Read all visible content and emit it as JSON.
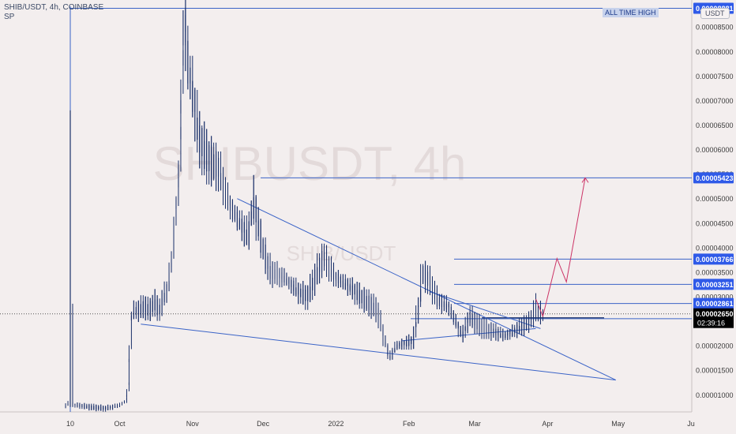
{
  "header": {
    "symbol_line": "SHIB/USDT, 4h, COINBASE",
    "indicator": "SP"
  },
  "badges": {
    "ath": "ALL TIME HIGH",
    "currency": "USDT"
  },
  "watermark": {
    "main": "SHIBUSDT, 4h",
    "sub": "SHIB/USDT"
  },
  "chart_data": {
    "type": "line",
    "title": "SHIB/USDT, 4h, COINBASE",
    "x_tick_labels": [
      "10",
      "Oct",
      "Nov",
      "Dec",
      "2022",
      "Feb",
      "Mar",
      "Apr",
      "May",
      "Ju"
    ],
    "y_tick_labels": [
      "0.00008500",
      "0.00008000",
      "0.00007500",
      "0.00007000",
      "0.00006500",
      "0.00006000",
      "0.00005500",
      "0.00005000",
      "0.00004500",
      "0.00004000",
      "0.00003500",
      "0.00003000",
      "0.00002500",
      "0.00002000",
      "0.00001500",
      "0.00001000"
    ],
    "ylim": [
      6.5e-06,
      9.05e-05
    ],
    "price_series": {
      "name": "SHIB/USDT",
      "points": [
        [
          "2021-09-08",
          7.5e-06
        ],
        [
          "2021-09-10",
          8.5e-06
        ],
        [
          "2021-09-10",
          6.8e-05
        ],
        [
          "2021-09-11",
          8e-06
        ],
        [
          "2021-09-18",
          7.5e-06
        ],
        [
          "2021-09-25",
          7.2e-06
        ],
        [
          "2021-10-01",
          7.8e-06
        ],
        [
          "2021-10-04",
          8.8e-06
        ],
        [
          "2021-10-05",
          1.22e-05
        ],
        [
          "2021-10-06",
          2.5e-05
        ],
        [
          "2021-10-07",
          2.7e-05
        ],
        [
          "2021-10-09",
          2.72e-05
        ],
        [
          "2021-10-12",
          2.8e-05
        ],
        [
          "2021-10-14",
          2.7e-05
        ],
        [
          "2021-10-16",
          2.9e-05
        ],
        [
          "2021-10-18",
          2.7e-05
        ],
        [
          "2021-10-20",
          3e-05
        ],
        [
          "2021-10-22",
          3.2e-05
        ],
        [
          "2021-10-24",
          4e-05
        ],
        [
          "2021-10-25",
          4.8e-05
        ],
        [
          "2021-10-26",
          5.2e-05
        ],
        [
          "2021-10-27",
          6.2e-05
        ],
        [
          "2021-10-28",
          8e-05
        ],
        [
          "2021-10-29",
          8.88e-05
        ],
        [
          "2021-10-30",
          7.8e-05
        ],
        [
          "2021-11-01",
          7.2e-05
        ],
        [
          "2021-11-04",
          6.2e-05
        ],
        [
          "2021-11-08",
          5.8e-05
        ],
        [
          "2021-11-12",
          5.6e-05
        ],
        [
          "2021-11-16",
          5e-05
        ],
        [
          "2021-11-20",
          4.6e-05
        ],
        [
          "2021-11-25",
          4.2e-05
        ],
        [
          "2021-11-27",
          5e-05
        ],
        [
          "2021-12-01",
          4e-05
        ],
        [
          "2021-12-04",
          3.5e-05
        ],
        [
          "2021-12-10",
          3.4e-05
        ],
        [
          "2021-12-16",
          3.1e-05
        ],
        [
          "2021-12-20",
          3e-05
        ],
        [
          "2021-12-27",
          3.8e-05
        ],
        [
          "2022-01-01",
          3.4e-05
        ],
        [
          "2022-01-07",
          3.2e-05
        ],
        [
          "2022-01-14",
          2.9e-05
        ],
        [
          "2022-01-19",
          2.7e-05
        ],
        [
          "2022-01-22",
          2.1e-05
        ],
        [
          "2022-01-24",
          1.75e-05
        ],
        [
          "2022-01-27",
          2e-05
        ],
        [
          "2022-02-03",
          2.1e-05
        ],
        [
          "2022-02-06",
          3e-05
        ],
        [
          "2022-02-07",
          3.5e-05
        ],
        [
          "2022-02-10",
          3.3e-05
        ],
        [
          "2022-02-14",
          2.9e-05
        ],
        [
          "2022-02-18",
          2.8e-05
        ],
        [
          "2022-02-22",
          2.4e-05
        ],
        [
          "2022-02-24",
          2.2e-05
        ],
        [
          "2022-02-27",
          2.6e-05
        ],
        [
          "2022-03-03",
          2.4e-05
        ],
        [
          "2022-03-08",
          2.3e-05
        ],
        [
          "2022-03-14",
          2.2e-05
        ],
        [
          "2022-03-18",
          2.3e-05
        ],
        [
          "2022-03-22",
          2.4e-05
        ],
        [
          "2022-03-25",
          2.5e-05
        ],
        [
          "2022-03-27",
          2.85e-05
        ],
        [
          "2022-03-28",
          2.7e-05
        ],
        [
          "2022-03-30",
          2.65e-05
        ]
      ]
    },
    "levels": [
      {
        "label": "0.00008881",
        "value": 8.881e-05
      },
      {
        "label": "0.00005423",
        "value": 5.423e-05
      },
      {
        "label": "0.00003766",
        "value": 3.766e-05
      },
      {
        "label": "0.00003251",
        "value": 3.251e-05
      },
      {
        "label": "0.00002861",
        "value": 2.861e-05
      },
      {
        "label": "0.00002550",
        "value": 2.55e-05
      }
    ],
    "current_price": {
      "label": "0.00002650",
      "value": 2.65e-05,
      "countdown": "02:39:16"
    },
    "trendlines": [
      {
        "name": "falling-wedge-top",
        "from": [
          "2021-11-20",
          5e-05
        ],
        "to": [
          "2022-04-30",
          1.3e-05
        ]
      },
      {
        "name": "falling-wedge-bottom",
        "from": [
          "2021-10-10",
          2.44e-05
        ],
        "to": [
          "2022-04-30",
          1.3e-05
        ]
      },
      {
        "name": "support-line",
        "from": [
          "2022-01-29",
          2.1e-05
        ],
        "to": [
          "2022-03-27",
          2.35e-05
        ]
      },
      {
        "name": "descending-resistance",
        "from": [
          "2022-02-10",
          3.1e-05
        ],
        "to": [
          "2022-03-29",
          2.35e-05
        ]
      }
    ],
    "projection": {
      "name": "projected-path",
      "points": [
        [
          "2022-03-27",
          2.95e-05
        ],
        [
          "2022-03-30",
          2.6e-05
        ],
        [
          "2022-04-05",
          3.78e-05
        ],
        [
          "2022-04-09",
          3.3e-05
        ],
        [
          "2022-04-17",
          5.423e-05
        ]
      ]
    },
    "colors": {
      "background": "#f3eeee",
      "candles": "#1a3069",
      "lines": "#3a63c7",
      "projection": "#cc3366",
      "label_bg": "#2f5ae8",
      "current_bg": "#000000"
    }
  }
}
